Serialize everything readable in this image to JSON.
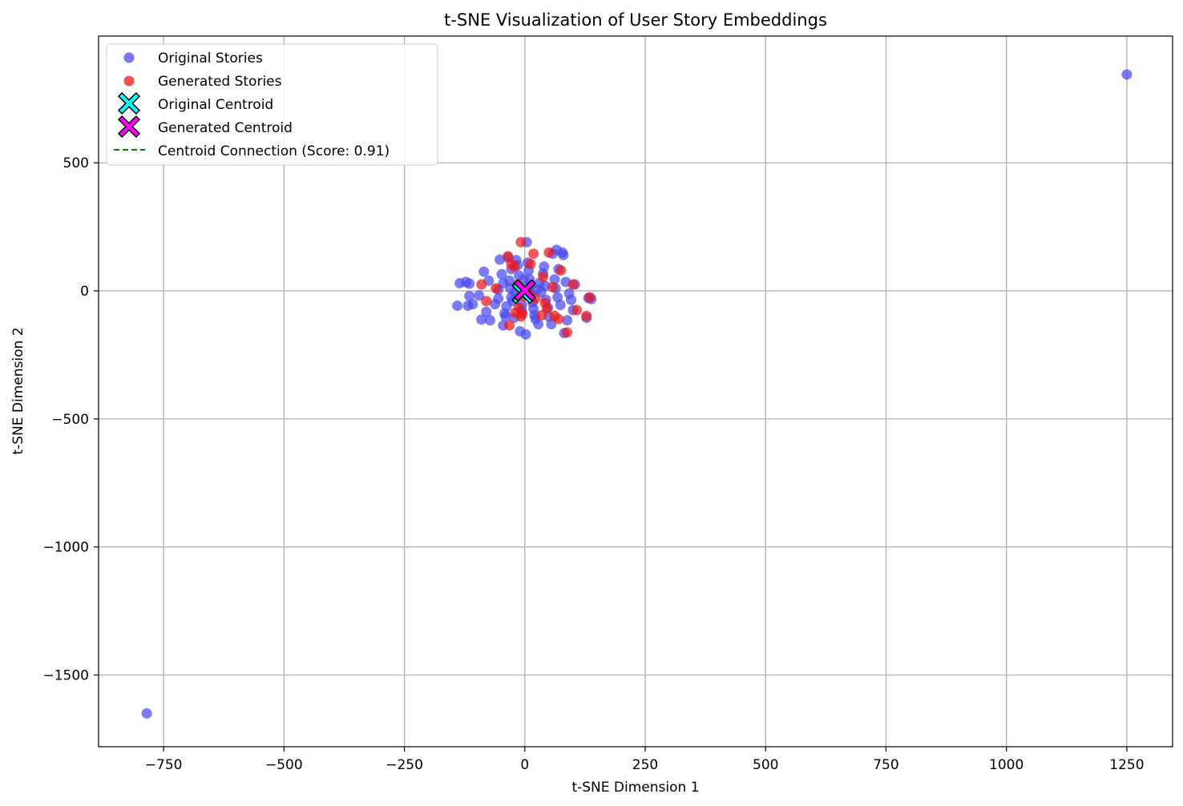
{
  "chart_data": {
    "type": "scatter",
    "title": "t-SNE Visualization of User Story Embeddings",
    "xlabel": "t-SNE Dimension 1",
    "ylabel": "t-SNE Dimension 2",
    "xlim": [
      -885,
      1345
    ],
    "ylim": [
      -1780,
      995
    ],
    "xticks": [
      -750,
      -500,
      -250,
      0,
      250,
      500,
      750,
      1000,
      1250
    ],
    "yticks": [
      -1500,
      -1000,
      -500,
      0,
      500
    ],
    "tick_labels": {
      "x": [
        "−750",
        "−500",
        "−250",
        "0",
        "250",
        "500",
        "750",
        "1000",
        "1250"
      ],
      "y": [
        "−1500",
        "−1000",
        "−500",
        "0",
        "500"
      ]
    },
    "grid": true,
    "legend_position": "top-left",
    "colors": {
      "original": "#4a4af0",
      "generated": "#f01818",
      "original_centroid": "#00ffff",
      "generated_centroid": "#ff00ff",
      "connection": "#008000",
      "grid": "#b0b0b0"
    },
    "series": [
      {
        "name": "Original Stories",
        "points": [
          [
            -135,
            30
          ],
          [
            -122,
            35
          ],
          [
            -115,
            28
          ],
          [
            -140,
            -58
          ],
          [
            -118,
            -58
          ],
          [
            -108,
            -52
          ],
          [
            -115,
            -20
          ],
          [
            -95,
            -18
          ],
          [
            -85,
            75
          ],
          [
            -75,
            40
          ],
          [
            -80,
            -82
          ],
          [
            -90,
            -112
          ],
          [
            -72,
            -115
          ],
          [
            -62,
            -52
          ],
          [
            -55,
            -30
          ],
          [
            -52,
            122
          ],
          [
            -48,
            65
          ],
          [
            -45,
            30
          ],
          [
            -42,
            -88
          ],
          [
            -40,
            -100
          ],
          [
            -45,
            -135
          ],
          [
            -38,
            -60
          ],
          [
            -35,
            130
          ],
          [
            -32,
            40
          ],
          [
            -30,
            10
          ],
          [
            -28,
            -25
          ],
          [
            -25,
            -40
          ],
          [
            -22,
            -105
          ],
          [
            -18,
            120
          ],
          [
            -15,
            100
          ],
          [
            -12,
            60
          ],
          [
            -10,
            15
          ],
          [
            -8,
            -10
          ],
          [
            -6,
            -55
          ],
          [
            -10,
            -158
          ],
          [
            2,
            -170
          ],
          [
            4,
            190
          ],
          [
            6,
            110
          ],
          [
            8,
            80
          ],
          [
            10,
            45
          ],
          [
            12,
            20
          ],
          [
            14,
            -15
          ],
          [
            16,
            -45
          ],
          [
            18,
            -70
          ],
          [
            20,
            -95
          ],
          [
            22,
            -110
          ],
          [
            28,
            -130
          ],
          [
            30,
            30
          ],
          [
            34,
            -5
          ],
          [
            38,
            68
          ],
          [
            42,
            20
          ],
          [
            44,
            -35
          ],
          [
            48,
            -65
          ],
          [
            50,
            -100
          ],
          [
            55,
            -130
          ],
          [
            58,
            145
          ],
          [
            62,
            45
          ],
          [
            64,
            10
          ],
          [
            66,
            160
          ],
          [
            68,
            -25
          ],
          [
            70,
            85
          ],
          [
            74,
            -55
          ],
          [
            78,
            150
          ],
          [
            80,
            140
          ],
          [
            82,
            -165
          ],
          [
            85,
            35
          ],
          [
            88,
            -115
          ],
          [
            92,
            -10
          ],
          [
            96,
            -35
          ],
          [
            100,
            -75
          ],
          [
            104,
            25
          ],
          [
            128,
            -105
          ],
          [
            132,
            -28
          ],
          [
            138,
            -32
          ],
          [
            -3,
            5
          ],
          [
            -6,
            -80
          ],
          [
            -2,
            45
          ],
          [
            -20,
            -5
          ],
          [
            25,
            5
          ],
          [
            -55,
            5
          ],
          [
            40,
            95
          ],
          [
            -28,
            85
          ],
          [
            1250,
            845
          ],
          [
            -785,
            -1650
          ]
        ]
      },
      {
        "name": "Generated Stories",
        "points": [
          [
            -90,
            25
          ],
          [
            -80,
            -40
          ],
          [
            -60,
            10
          ],
          [
            -35,
            135
          ],
          [
            -28,
            105
          ],
          [
            -22,
            95
          ],
          [
            -32,
            -135
          ],
          [
            -15,
            25
          ],
          [
            -12,
            -65
          ],
          [
            -8,
            190
          ],
          [
            -5,
            -90
          ],
          [
            -2,
            -20
          ],
          [
            5,
            5
          ],
          [
            8,
            -15
          ],
          [
            12,
            105
          ],
          [
            18,
            145
          ],
          [
            22,
            -30
          ],
          [
            35,
            -95
          ],
          [
            38,
            55
          ],
          [
            42,
            -48
          ],
          [
            46,
            -70
          ],
          [
            50,
            150
          ],
          [
            58,
            15
          ],
          [
            62,
            -98
          ],
          [
            70,
            -110
          ],
          [
            75,
            80
          ],
          [
            88,
            -162
          ],
          [
            100,
            25
          ],
          [
            108,
            -75
          ],
          [
            128,
            -98
          ],
          [
            135,
            -25
          ],
          [
            -20,
            -85
          ],
          [
            -8,
            -100
          ]
        ]
      }
    ],
    "centroids": [
      {
        "name": "Original Centroid",
        "x": -4,
        "y": -8
      },
      {
        "name": "Generated Centroid",
        "x": 0,
        "y": 2
      }
    ],
    "connection": {
      "name": "Centroid Connection (Score: 0.91)",
      "score": 0.91
    }
  }
}
